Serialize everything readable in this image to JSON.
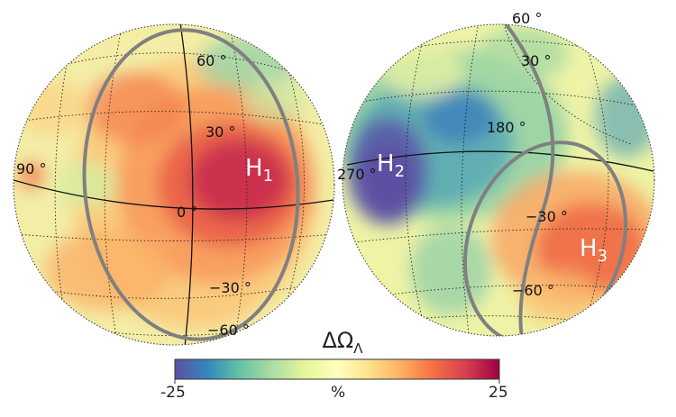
{
  "colorbar": {
    "title": "ΔΩΛ",
    "min_label": "-25",
    "unit_label": "%",
    "max_label": "25",
    "colors": [
      "#5e4fa2",
      "#3288bd",
      "#66c2a5",
      "#abdda4",
      "#e6f598",
      "#ffffbf",
      "#fee08b",
      "#fdae61",
      "#f46d43",
      "#d53e4f",
      "#9e0142"
    ]
  },
  "left_globe": {
    "labels": {
      "lat60": "60 °",
      "lat30": "30 °",
      "lat0": "0 °",
      "latm30": "−30 °",
      "latm60": "−60 °",
      "lon90": "90 °"
    },
    "hemisphere_label": "H1"
  },
  "right_globe": {
    "labels": {
      "lat60": "60 °",
      "lat30": "30 °",
      "lon180": "180 °",
      "lon270": "270 °",
      "latm30": "−30 °",
      "latm60": "−60 °"
    },
    "hemisphere_labels": [
      "H2",
      "H3"
    ]
  }
}
